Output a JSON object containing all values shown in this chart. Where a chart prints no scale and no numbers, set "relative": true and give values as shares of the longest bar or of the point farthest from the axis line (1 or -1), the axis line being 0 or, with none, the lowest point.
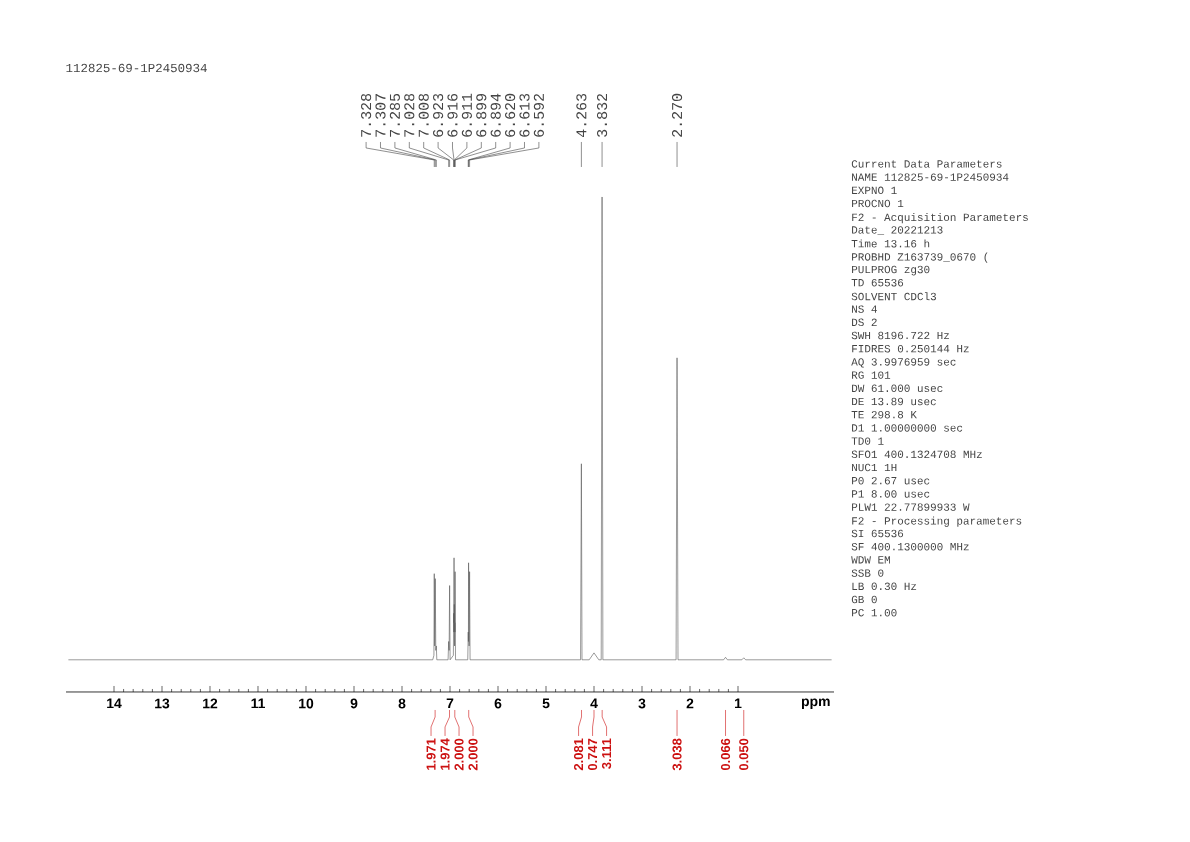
{
  "chart_data": [
    {
      "type": "line",
      "title": "112825-69-1P2450934",
      "xlabel": "ppm",
      "relative": true,
      "xlim": [
        15,
        -1
      ],
      "xticks": [
        14,
        13,
        12,
        11,
        10,
        9,
        8,
        7,
        6,
        5,
        4,
        3,
        2,
        1
      ],
      "x": [
        14.95,
        7.36,
        7.335,
        7.328,
        7.318,
        7.307,
        7.296,
        7.285,
        7.275,
        7.04,
        7.028,
        7.018,
        7.008,
        6.998,
        6.93,
        6.923,
        6.919,
        6.916,
        6.913,
        6.911,
        6.905,
        6.899,
        6.897,
        6.894,
        6.885,
        6.63,
        6.62,
        6.616,
        6.613,
        6.602,
        6.592,
        6.582,
        4.28,
        4.263,
        4.25,
        4.1,
        4.0,
        3.9,
        3.85,
        3.832,
        3.815,
        2.29,
        2.27,
        2.25,
        1.3,
        1.26,
        1.22,
        0.92,
        0.88,
        0.84,
        -0.95
      ],
      "series": [
        {
          "color": "#555555",
          "values": [
            0.065,
            0.065,
            0.074,
            0.239,
            0.093,
            0.229,
            0.084,
            0.093,
            0.065,
            0.065,
            0.102,
            0.084,
            0.215,
            0.065,
            0.074,
            0.159,
            0.121,
            0.271,
            0.14,
            0.177,
            0.093,
            0.14,
            0.121,
            0.243,
            0.065,
            0.065,
            0.121,
            0.102,
            0.261,
            0.093,
            0.243,
            0.065,
            0.065,
            0.461,
            0.065,
            0.065,
            0.079,
            0.065,
            0.065,
            1.0,
            0.065,
            0.065,
            0.675,
            0.065,
            0.065,
            0.07,
            0.065,
            0.065,
            0.069,
            0.065,
            0.065
          ]
        }
      ],
      "annotations": [
        {
          "text": "7.328",
          "x": 7.328
        },
        {
          "text": "7.307",
          "x": 7.307
        },
        {
          "text": "7.285",
          "x": 7.285
        },
        {
          "text": "7.028",
          "x": 7.028
        },
        {
          "text": "7.008",
          "x": 7.008
        },
        {
          "text": "6.923",
          "x": 6.923
        },
        {
          "text": "6.916",
          "x": 6.916
        },
        {
          "text": "6.911",
          "x": 6.911
        },
        {
          "text": "6.899",
          "x": 6.899
        },
        {
          "text": "6.894",
          "x": 6.894
        },
        {
          "text": "6.620",
          "x": 6.62
        },
        {
          "text": "6.613",
          "x": 6.613
        },
        {
          "text": "6.592",
          "x": 6.592
        },
        {
          "text": "4.263",
          "x": 4.263
        },
        {
          "text": "3.832",
          "x": 3.832
        },
        {
          "text": "2.270",
          "x": 2.27
        },
        {
          "text": "1.971",
          "x": 7.31
        },
        {
          "text": "1.974",
          "x": 7.01
        },
        {
          "text": "2.000",
          "x": 6.9
        },
        {
          "text": "2.000",
          "x": 6.61
        },
        {
          "text": "2.081",
          "x": 4.26
        },
        {
          "text": "0.747",
          "x": 4.0
        },
        {
          "text": "3.111",
          "x": 3.83
        },
        {
          "text": "3.038",
          "x": 2.27
        },
        {
          "text": "0.066",
          "x": 1.26
        },
        {
          "text": "0.050",
          "x": 0.88
        }
      ]
    },
    {
      "type": "other",
      "annotations": [
        "Current Data Parameters",
        "NAME 112825-69-1P2450934",
        "EXPNO 1",
        "PROCNO 1",
        "F2 - Acquisition Parameters",
        "Date_ 20221213",
        "Time 13.16 h",
        "PROBHD Z163739_0670 (",
        "PULPROG zg30",
        "TD 65536",
        "SOLVENT CDCl3",
        "NS 4",
        "DS 2",
        "SWH 8196.722 Hz",
        "FIDRES 0.250144 Hz",
        "AQ 3.9976959 sec",
        "RG 101",
        "DW 61.000 usec",
        "DE 13.89 usec",
        "TE 298.8 K",
        "D1 1.00000000 sec",
        "TD0 1",
        "SFO1 400.1324708 MHz",
        "NUC1 1H",
        "P0 2.67 usec",
        "P1 8.00 usec",
        "PLW1 22.77899933 W",
        "F2 - Processing parameters",
        "SI 65536",
        "SF 400.1300000 MHz",
        "WDW EM",
        "SSB 0",
        "LB 0.30 Hz",
        "GB 0",
        "PC 1.00"
      ]
    }
  ]
}
